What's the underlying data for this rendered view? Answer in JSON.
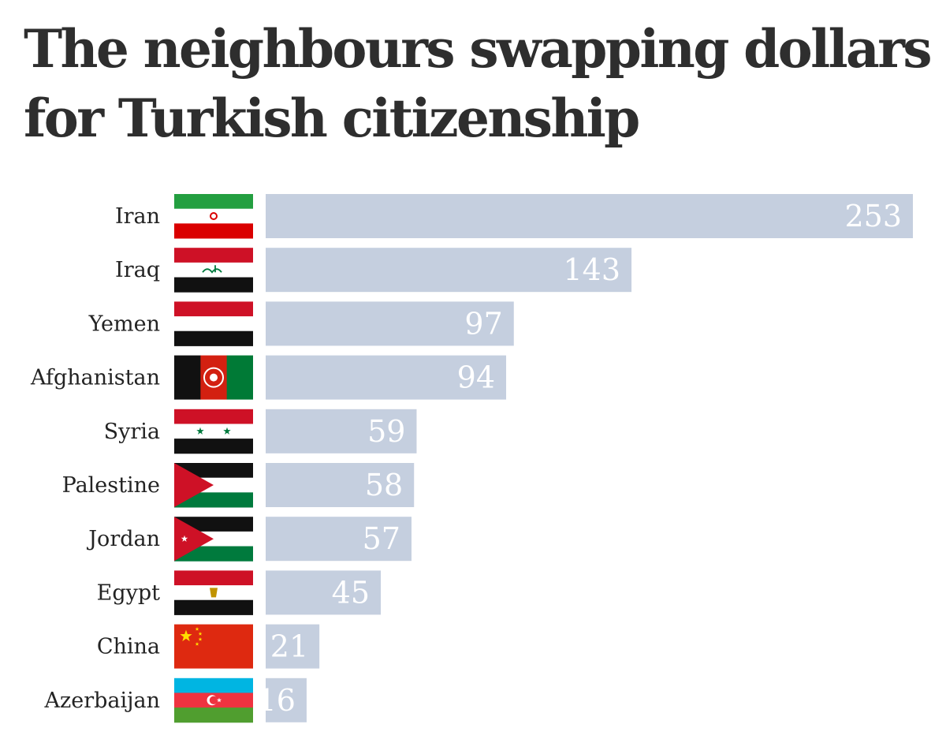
{
  "title": "The neighbours swapping dollars for Turkish citizenship",
  "chart_data": {
    "type": "bar",
    "orientation": "horizontal",
    "title": "The neighbours swapping dollars for Turkish citizenship",
    "categories": [
      "Iran",
      "Iraq",
      "Yemen",
      "Afghanistan",
      "Syria",
      "Palestine",
      "Jordan",
      "Egypt",
      "China",
      "Azerbaijan"
    ],
    "values": [
      253,
      143,
      97,
      94,
      59,
      58,
      57,
      45,
      21,
      16
    ],
    "flags": [
      "iran-flag",
      "iraq-flag",
      "yemen-flag",
      "afghanistan-flag",
      "syria-flag",
      "palestine-flag",
      "jordan-flag",
      "egypt-flag",
      "china-flag",
      "azerbaijan-flag"
    ],
    "bar_color": "#c5cfdf",
    "value_label_color": "#ffffff",
    "grid": false,
    "legend": "none"
  }
}
